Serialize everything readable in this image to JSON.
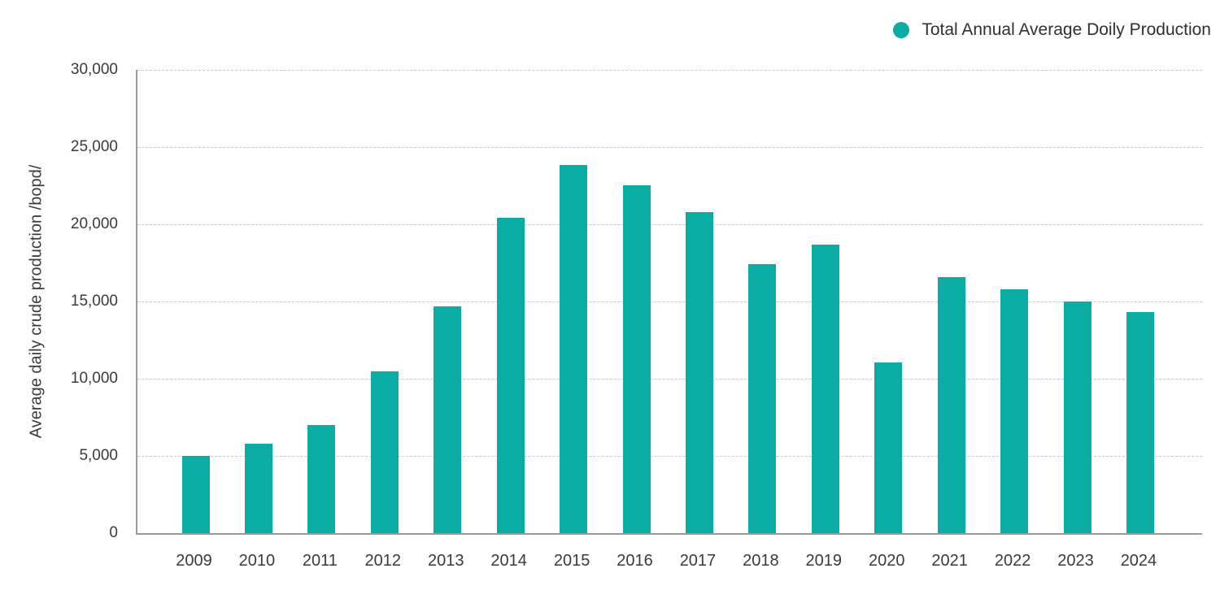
{
  "legend": {
    "label": "Total Annual Average Doily Production"
  },
  "y_axis": {
    "title": "Average daily crude production /bopd/",
    "tick_labels": [
      "30,000",
      "25,000",
      "20,000",
      "15,000",
      "10,000",
      "5,000",
      "0"
    ]
  },
  "chart_data": {
    "type": "bar",
    "title": "",
    "series_name": "Total Annual Average Doily Production",
    "categories": [
      "2009",
      "2010",
      "2011",
      "2012",
      "2013",
      "2014",
      "2015",
      "2016",
      "2017",
      "2018",
      "2019",
      "2020",
      "2021",
      "2022",
      "2023",
      "2024"
    ],
    "values": [
      5000,
      5800,
      7000,
      10500,
      14700,
      20400,
      23850,
      22550,
      20800,
      17400,
      18700,
      11050,
      16600,
      15800,
      15000,
      14300
    ],
    "xlabel": "",
    "ylabel": "Average daily crude production /bopd/",
    "ylim": [
      0,
      30000
    ],
    "y_tick_step": 5000,
    "grid": "horizontal-dashed",
    "legend_position": "top-right"
  },
  "colors": {
    "bar": "#0aaca4",
    "grid_line": "#c9c9c9",
    "axis_line": "#9a9a9a",
    "text": "#3a3a3a",
    "background": "#ffffff"
  }
}
